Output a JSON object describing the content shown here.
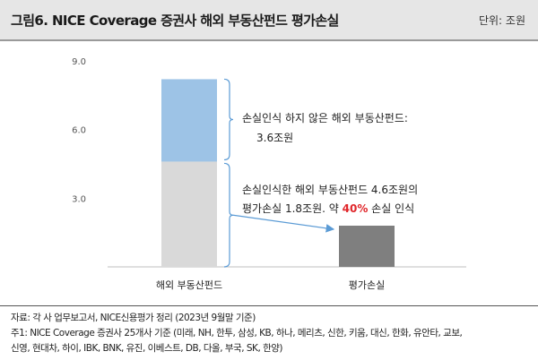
{
  "header": {
    "title": "그림6. NICE Coverage 증권사 해외 부동산펀드 평가손실",
    "unit": "단위: 조원"
  },
  "chart_data": {
    "type": "bar",
    "categories": [
      "해외 부동산펀드",
      "평가손실"
    ],
    "stacked_series": [
      {
        "name": "손실인식 하지 않은 해외 부동산펀드",
        "color": "#9dc3e6",
        "values": [
          3.6,
          0
        ]
      },
      {
        "name": "손실인식한 해외 부동산펀드",
        "color": "#d9d9d9",
        "values": [
          4.6,
          0
        ]
      }
    ],
    "loss_series": {
      "name": "평가손실",
      "color": "#7f7f7f",
      "values": [
        0,
        1.8
      ]
    },
    "ylim": [
      0,
      9.0
    ],
    "yticks": [
      "9.0",
      "6.0",
      "3.0"
    ],
    "ytick_values": [
      9.0,
      6.0,
      3.0
    ],
    "grid": false,
    "annotations": {
      "upper": {
        "line1": "손실인식 하지 않은 해외 부동산펀드:",
        "line2": "3.6조원"
      },
      "lower": {
        "line1": "손실인식한 해외 부동산펀드 4.6조원의",
        "line2_prefix": "평가손실 1.8조원. 약 ",
        "line2_highlight": "40%",
        "line2_suffix": " 손실 인식",
        "highlight_color": "#e0262a"
      }
    }
  },
  "footer": {
    "line1": "자료: 각 사 업무보고서, NICE신용평가 정리 (2023년 9월말 기준)",
    "line2": "주1: NICE Coverage 증권사 25개사 기준 (미래, NH, 한투, 삼성, KB, 하나, 메리츠, 신한, 키움, 대신, 한화, 유안타, 교보,",
    "line3": "신영, 현대차, 하이, IBK, BNK, 유진, 이베스트, DB, 다올, 부국, SK, 한양)"
  }
}
